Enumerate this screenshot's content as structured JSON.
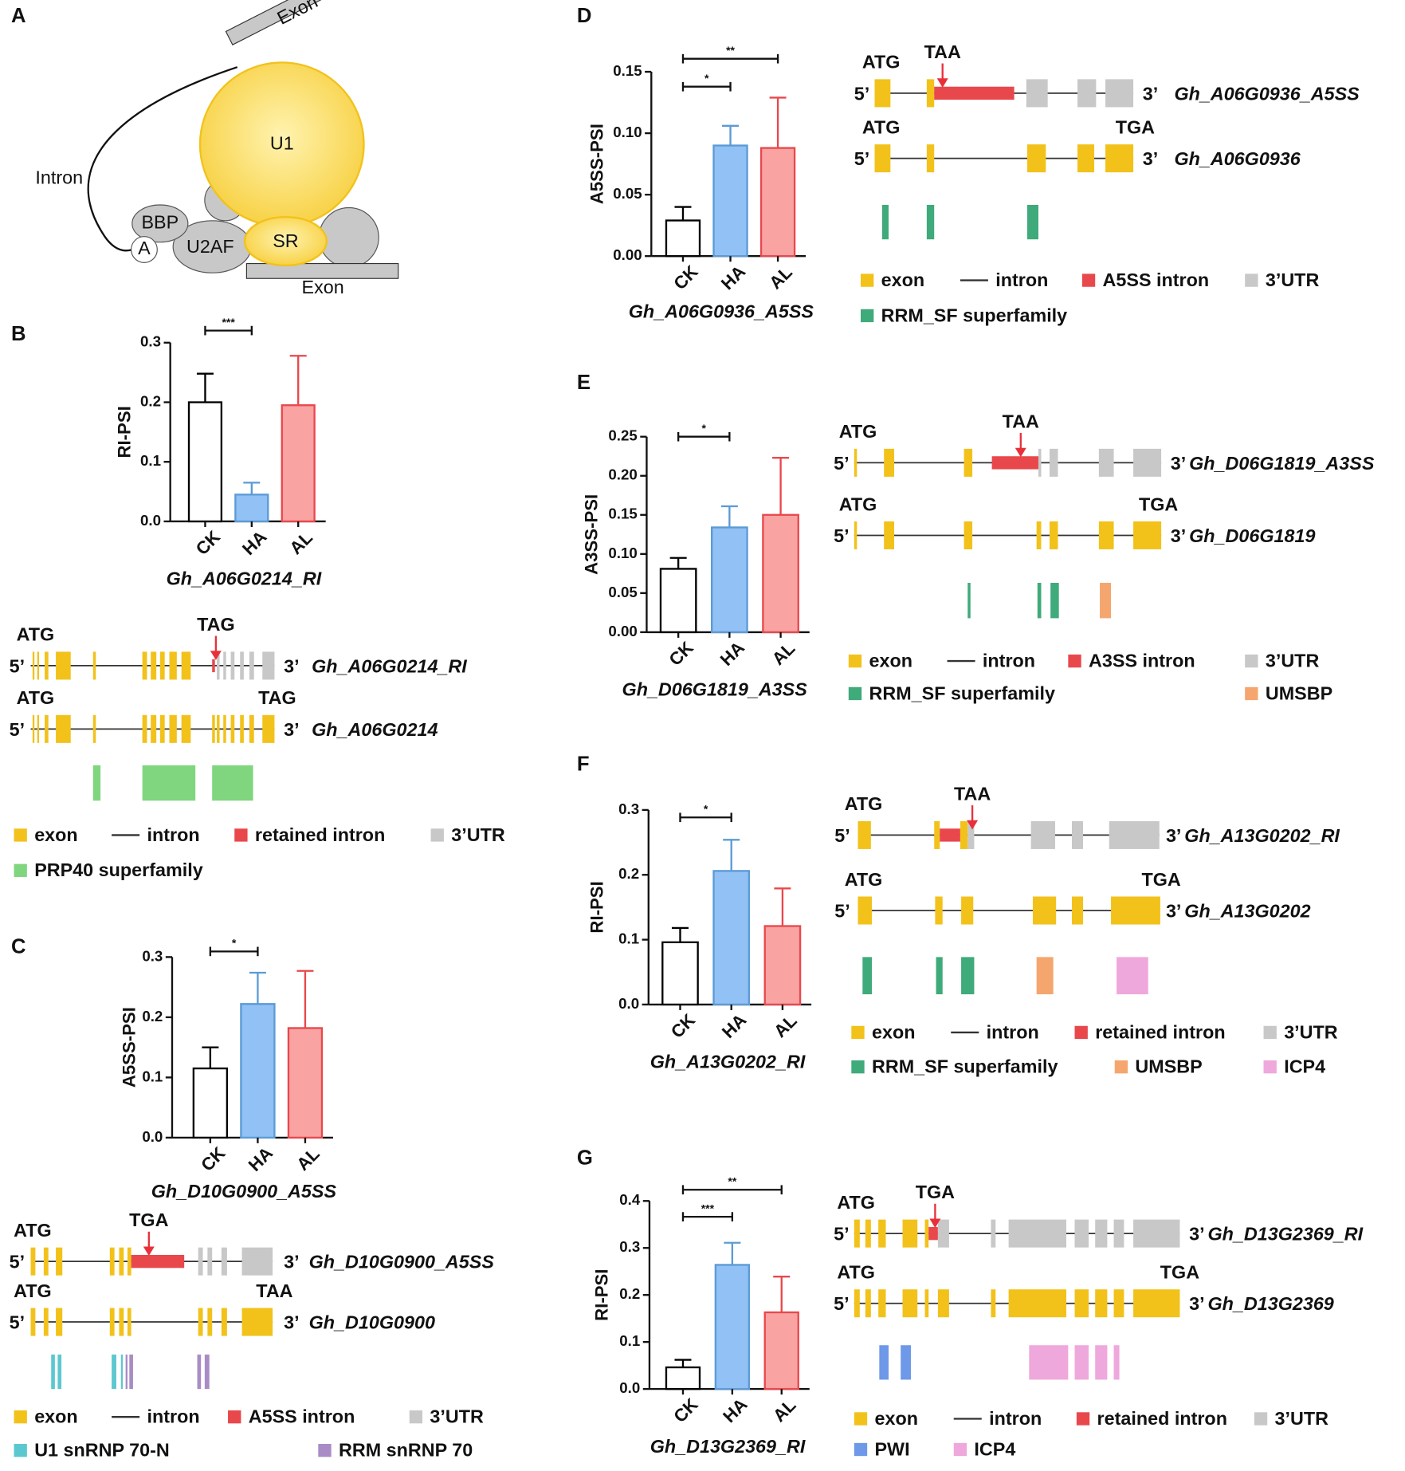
{
  "panel_labels": [
    "A",
    "B",
    "C",
    "D",
    "E",
    "F",
    "G"
  ],
  "diagram": {
    "exon_top": "Exon",
    "exon_bottom": "Exon",
    "u1": "U1",
    "intron": "Intron",
    "bbp": "BBP",
    "branch": "A",
    "u2af": "U2AF",
    "sr": "SR"
  },
  "chart_data": [
    {
      "type": "bar",
      "title": "Gh_A06G0214_RI",
      "ylabel": "RI-PSI",
      "categories": [
        "CK",
        "HA",
        "AL"
      ],
      "values": [
        0.2,
        0.045,
        0.195
      ],
      "errors": [
        0.048,
        0.02,
        0.083
      ],
      "colors": [
        "#ffffff",
        "#92c1f6",
        "#f9a3a3"
      ],
      "edge_colors": [
        "#000000",
        "#5b9bd5",
        "#e8484c"
      ],
      "ylim": [
        0,
        0.3
      ],
      "yticks": [
        {
          "value": 0,
          "label": "0.0"
        },
        0.1,
        0.2,
        0.3
      ],
      "significance": [
        {
          "label": "***"
        }
      ]
    },
    {
      "type": "bar",
      "title": "Gh_D10G0900_A5SS",
      "ylabel": "A5SS-PSI",
      "categories": [
        "CK",
        "HA",
        "AL"
      ],
      "values": [
        0.115,
        0.222,
        0.182
      ],
      "errors": [
        0.035,
        0.052,
        0.095
      ],
      "colors": [
        "#ffffff",
        "#92c1f6",
        "#f9a3a3"
      ],
      "edge_colors": [
        "#000000",
        "#5b9bd5",
        "#e8484c"
      ],
      "ylim": [
        0,
        0.3
      ],
      "yticks": [
        {
          "value": 0,
          "label": "0.0"
        },
        0.1,
        0.2,
        0.3
      ],
      "significance": [
        {
          "label": "*"
        }
      ]
    },
    {
      "type": "bar",
      "title": "Gh_A06G0936_A5SS",
      "ylabel": "A5SS-PSI",
      "categories": [
        "CK",
        "HA",
        "AL"
      ],
      "values": [
        0.029,
        0.09,
        0.088
      ],
      "errors": [
        0.011,
        0.016,
        0.041
      ],
      "colors": [
        "#ffffff",
        "#92c1f6",
        "#f9a3a3"
      ],
      "edge_colors": [
        "#000000",
        "#5b9bd5",
        "#e8484c"
      ],
      "ylim": [
        0,
        0.15
      ],
      "yticks": [
        {
          "value": 0,
          "label": "0.00"
        },
        {
          "value": 0.05,
          "label": "0.05"
        },
        {
          "value": 0.1,
          "label": "0.10"
        },
        {
          "value": 0.15,
          "label": "0.15"
        }
      ],
      "significance": [
        {
          "label": "*"
        },
        {
          "label": "**"
        }
      ]
    },
    {
      "type": "bar",
      "title": "Gh_D06G1819_A3SS",
      "ylabel": "A3SS-PSI",
      "categories": [
        "CK",
        "HA",
        "AL"
      ],
      "values": [
        0.081,
        0.134,
        0.15
      ],
      "errors": [
        0.014,
        0.027,
        0.073
      ],
      "colors": [
        "#ffffff",
        "#92c1f6",
        "#f9a3a3"
      ],
      "edge_colors": [
        "#000000",
        "#5b9bd5",
        "#e8484c"
      ],
      "ylim": [
        0,
        0.25
      ],
      "yticks": [
        {
          "value": 0,
          "label": "0.00"
        },
        {
          "value": 0.05,
          "label": "0.05"
        },
        {
          "value": 0.1,
          "label": "0.10"
        },
        {
          "value": 0.15,
          "label": "0.15"
        },
        {
          "value": 0.2,
          "label": "0.20"
        },
        {
          "value": 0.25,
          "label": "0.25"
        }
      ],
      "significance": [
        {
          "label": "*"
        }
      ]
    },
    {
      "type": "bar",
      "title": "Gh_A13G0202_RI",
      "ylabel": "RI-PSI",
      "categories": [
        "CK",
        "HA",
        "AL"
      ],
      "values": [
        0.096,
        0.206,
        0.121
      ],
      "errors": [
        0.022,
        0.048,
        0.058
      ],
      "colors": [
        "#ffffff",
        "#92c1f6",
        "#f9a3a3"
      ],
      "edge_colors": [
        "#000000",
        "#5b9bd5",
        "#e8484c"
      ],
      "ylim": [
        0,
        0.3
      ],
      "yticks": [
        {
          "value": 0,
          "label": "0.0"
        },
        0.1,
        0.2,
        0.3
      ],
      "significance": [
        {
          "label": "*"
        }
      ]
    },
    {
      "type": "bar",
      "title": "Gh_D13G2369_RI",
      "ylabel": "RI-PSI",
      "categories": [
        "CK",
        "HA",
        "AL"
      ],
      "values": [
        0.046,
        0.264,
        0.163
      ],
      "errors": [
        0.016,
        0.047,
        0.076
      ],
      "colors": [
        "#ffffff",
        "#92c1f6",
        "#f9a3a3"
      ],
      "edge_colors": [
        "#000000",
        "#5b9bd5",
        "#e8484c"
      ],
      "ylim": [
        0,
        0.4
      ],
      "yticks": [
        {
          "value": 0,
          "label": "0.0"
        },
        0.1,
        0.2,
        0.3,
        0.4
      ],
      "significance": [
        {
          "label": "***"
        },
        {
          "label": "**"
        }
      ]
    }
  ],
  "gene_models": [
    {
      "transcripts": [
        {
          "name": "Gh_A06G0214_RI",
          "start": "ATG",
          "stop": "TAG",
          "five_prime": "5’",
          "three_prime": "3’"
        },
        {
          "name": "Gh_A06G0214",
          "start": "ATG",
          "stop": "TAG",
          "five_prime": "5’",
          "three_prime": "3’"
        }
      ],
      "legend": [
        {
          "label": "exon",
          "color": "#f2c21b"
        },
        {
          "label": "intron",
          "color": "#333333"
        },
        {
          "label": "retained intron",
          "color": "#e8484c"
        },
        {
          "label": "3’UTR",
          "color": "#c8c8c8"
        },
        {
          "label": "PRP40 superfamily",
          "color": "#7fd67f"
        }
      ]
    },
    {
      "transcripts": [
        {
          "name": "Gh_D10G0900_A5SS",
          "start": "ATG",
          "stop": "TGA",
          "five_prime": "5’",
          "three_prime": "3’"
        },
        {
          "name": "Gh_D10G0900",
          "start": "ATG",
          "stop": "TAA",
          "five_prime": "5’",
          "three_prime": "3’"
        }
      ],
      "legend": [
        {
          "label": "exon",
          "color": "#f2c21b"
        },
        {
          "label": "intron",
          "color": "#333333"
        },
        {
          "label": "A5SS intron",
          "color": "#e8484c"
        },
        {
          "label": "3’UTR",
          "color": "#c8c8c8"
        },
        {
          "label": "U1 snRNP 70-N",
          "color": "#5bc8d0"
        },
        {
          "label": "RRM snRNP 70",
          "color": "#a98cc5"
        }
      ]
    },
    {
      "transcripts": [
        {
          "name": "Gh_A06G0936_A5SS",
          "start": "ATG",
          "stop": "TAA",
          "five_prime": "5’",
          "three_prime": "3’"
        },
        {
          "name": "Gh_A06G0936",
          "start": "ATG",
          "stop": "TGA",
          "five_prime": "5’",
          "three_prime": "3’"
        }
      ],
      "legend": [
        {
          "label": "exon",
          "color": "#f2c21b"
        },
        {
          "label": "intron",
          "color": "#333333"
        },
        {
          "label": "A5SS intron",
          "color": "#e8484c"
        },
        {
          "label": "3’UTR",
          "color": "#c8c8c8"
        },
        {
          "label": "RRM_SF superfamily",
          "color": "#3faa7a"
        }
      ]
    },
    {
      "transcripts": [
        {
          "name": "Gh_D06G1819_A3SS",
          "start": "ATG",
          "stop": "TAA",
          "five_prime": "5’",
          "three_prime": "3’"
        },
        {
          "name": "Gh_D06G1819",
          "start": "ATG",
          "stop": "TGA",
          "five_prime": "5’",
          "three_prime": "3’"
        }
      ],
      "legend": [
        {
          "label": "exon",
          "color": "#f2c21b"
        },
        {
          "label": "intron",
          "color": "#333333"
        },
        {
          "label": "A3SS intron",
          "color": "#e8484c"
        },
        {
          "label": "3’UTR",
          "color": "#c8c8c8"
        },
        {
          "label": "RRM_SF superfamily",
          "color": "#3faa7a"
        },
        {
          "label": "UMSBP",
          "color": "#f5a66e"
        }
      ]
    },
    {
      "transcripts": [
        {
          "name": "Gh_A13G0202_RI",
          "start": "ATG",
          "stop": "TAA",
          "five_prime": "5’",
          "three_prime": "3’"
        },
        {
          "name": "Gh_A13G0202",
          "start": "ATG",
          "stop": "TGA",
          "five_prime": "5’",
          "three_prime": "3’"
        }
      ],
      "legend": [
        {
          "label": "exon",
          "color": "#f2c21b"
        },
        {
          "label": "intron",
          "color": "#333333"
        },
        {
          "label": "retained intron",
          "color": "#e8484c"
        },
        {
          "label": "3’UTR",
          "color": "#c8c8c8"
        },
        {
          "label": "RRM_SF superfamily",
          "color": "#3faa7a"
        },
        {
          "label": "UMSBP",
          "color": "#f5a66e"
        },
        {
          "label": "ICP4",
          "color": "#efa8dc"
        }
      ]
    },
    {
      "transcripts": [
        {
          "name": "Gh_D13G2369_RI",
          "start": "ATG",
          "stop": "TGA",
          "five_prime": "5’",
          "three_prime": "3’"
        },
        {
          "name": "Gh_D13G2369",
          "start": "ATG",
          "stop": "TGA",
          "five_prime": "5’",
          "three_prime": "3’"
        }
      ],
      "legend": [
        {
          "label": "exon",
          "color": "#f2c21b"
        },
        {
          "label": "intron",
          "color": "#333333"
        },
        {
          "label": "retained intron",
          "color": "#e8484c"
        },
        {
          "label": "3’UTR",
          "color": "#c8c8c8"
        },
        {
          "label": "PWI",
          "color": "#6e98e8"
        },
        {
          "label": "ICP4",
          "color": "#efa8dc"
        }
      ]
    }
  ]
}
